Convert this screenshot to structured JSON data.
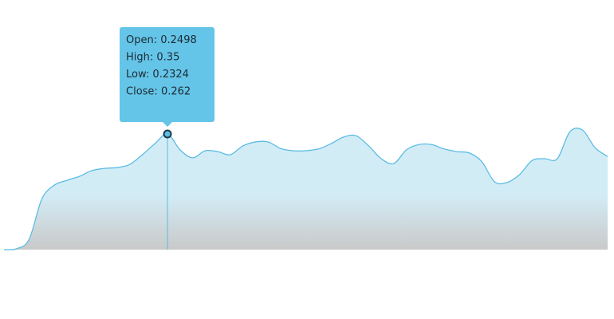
{
  "chart_data": {
    "type": "area",
    "categories": [
      null,
      null,
      null,
      null,
      null,
      null,
      null,
      null,
      null,
      null,
      null,
      null,
      null,
      null,
      null,
      null,
      null,
      null,
      null,
      null,
      null,
      null,
      null,
      null,
      null,
      null,
      null,
      null,
      null,
      null,
      null,
      null,
      null,
      null,
      null,
      null,
      null,
      null,
      null,
      null,
      null,
      null,
      null,
      null,
      null,
      null,
      null,
      null,
      null
    ],
    "values": [
      0,
      0.002,
      0.0235,
      0.114,
      0.146,
      0.157,
      0.166,
      0.179,
      0.184,
      0.186,
      0.193,
      0.215,
      0.24,
      0.262,
      0.226,
      0.208,
      0.224,
      0.222,
      0.215,
      0.235,
      0.244,
      0.244,
      0.229,
      0.224,
      0.224,
      0.228,
      0.24,
      0.255,
      0.258,
      0.235,
      0.206,
      0.195,
      0.226,
      0.238,
      0.238,
      0.228,
      0.222,
      0.219,
      0.199,
      0.154,
      0.152,
      0.17,
      0.202,
      0.206,
      0.206,
      0.267,
      0.271,
      0.231,
      0.211
    ],
    "color": "#5bbce4",
    "highlight": 13,
    "tooltip": [
      {
        "label": "Open:",
        "value": 0.2498
      },
      {
        "label": "High:",
        "value": 0.35
      },
      {
        "label": "Low:",
        "value": 0.2324
      },
      {
        "label": "Close:",
        "value": 0.262
      }
    ]
  }
}
